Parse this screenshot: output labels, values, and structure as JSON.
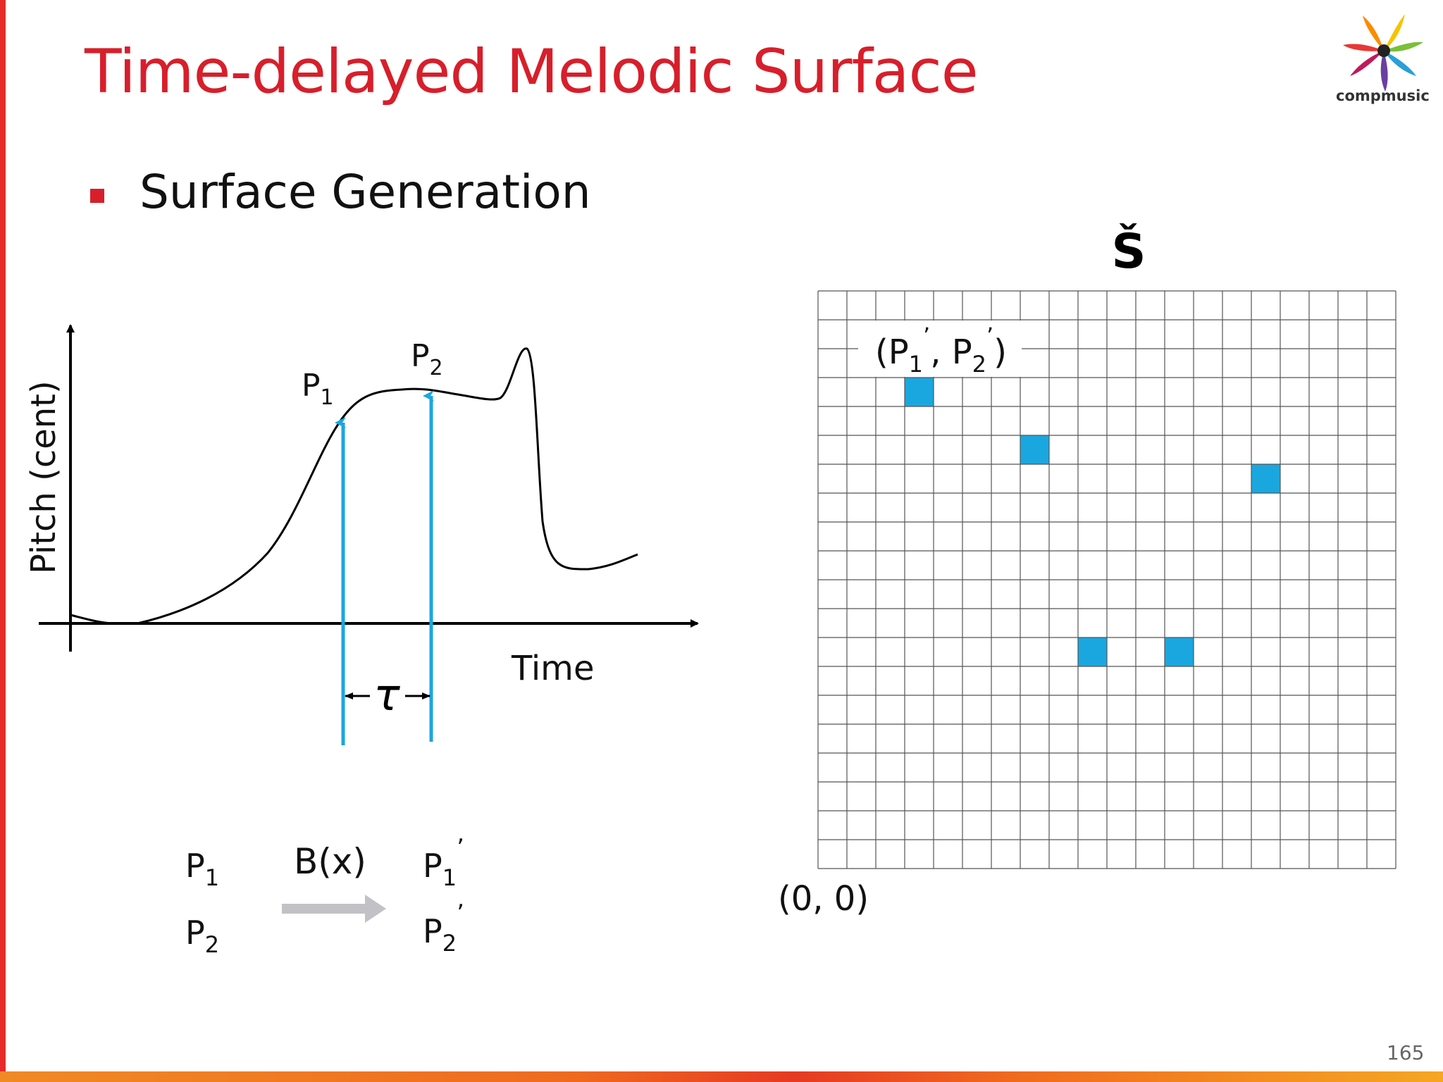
{
  "slide": {
    "title": "Time-delayed Melodic Surface",
    "bullet": "Surface Generation",
    "page_number": "165",
    "logo_text": "compmusic"
  },
  "left_diagram": {
    "y_axis_label": "Pitch (cent)",
    "x_axis_label": "Time",
    "point_1": "P",
    "point_1_sub": "1",
    "point_2": "P",
    "point_2_sub": "2",
    "delay_symbol": "τ",
    "arrow_color": "#1aa7e0"
  },
  "mapping": {
    "input_1": "P",
    "input_1_sub": "1",
    "input_2": "P",
    "input_2_sub": "2",
    "function_label": "B(x)",
    "output_1": "P",
    "output_1_sub": "1",
    "output_1_prime": "’",
    "output_2": "P",
    "output_2_sub": "2",
    "output_2_prime": "’"
  },
  "surface": {
    "symbol": "Š",
    "pair_label_open": "(P",
    "pair_sub_1": "1",
    "pair_prime_1": "’",
    "pair_mid": ", P",
    "pair_sub_2": "2",
    "pair_prime_2": "’",
    "pair_close": ")",
    "origin_label": "(0, 0)",
    "grid_cols": 20,
    "grid_rows": 20,
    "filled_color": "#1aa7e0",
    "filled_cells": [
      {
        "col": 3,
        "row": 16
      },
      {
        "col": 7,
        "row": 14
      },
      {
        "col": 15,
        "row": 13
      },
      {
        "col": 9,
        "row": 7
      },
      {
        "col": 12,
        "row": 7
      }
    ]
  }
}
